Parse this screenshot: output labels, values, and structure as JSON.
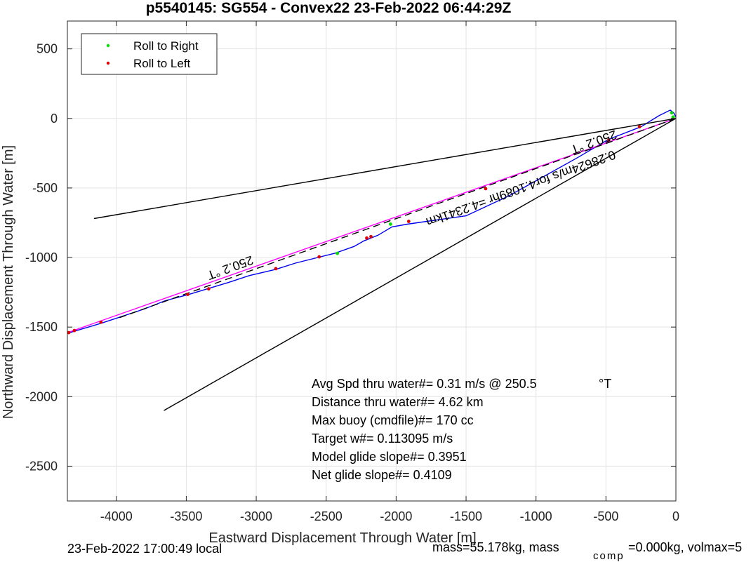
{
  "chart_data": {
    "type": "line",
    "title": "p5540145: SG554 - Convex22 23-Feb-2022 06:44:29Z",
    "xlabel": "Eastward Displacement Through Water [m]",
    "ylabel": "Northward Displacement Through Water [m]",
    "xlim": [
      -4350,
      0
    ],
    "ylim": [
      -2750,
      700
    ],
    "xticks": [
      -4000,
      -3500,
      -3000,
      -2500,
      -2000,
      -1500,
      -1000,
      -500,
      0
    ],
    "xtick_labels": [
      "-4000",
      "-3500",
      "-3000",
      "-2500",
      "-2000",
      "-1500",
      "-1000",
      "-500",
      "0"
    ],
    "yticks": [
      500,
      0,
      -500,
      -1000,
      -1500,
      -2000,
      -2500
    ],
    "ytick_labels": [
      "500",
      "0",
      "-500",
      "-1000",
      "-1500",
      "-2000",
      "-2500"
    ],
    "grid": true,
    "legend_position": "top-left",
    "legend": [
      {
        "label": "Roll to Right",
        "color": "#00e000"
      },
      {
        "label": "Roll to Left",
        "color": "#e00000"
      }
    ],
    "series": [
      {
        "kind": "track",
        "color": "#0000ee",
        "x": [
          0,
          -15,
          -40,
          -120,
          -250,
          -480,
          -700,
          -950,
          -1200,
          -1500,
          -1780,
          -1920,
          -2030,
          -2130,
          -2180,
          -2230,
          -2300,
          -2440,
          -2560,
          -2720,
          -2860,
          -3050,
          -3200,
          -3350,
          -3480,
          -3650,
          -3800,
          -3950,
          -4100,
          -4200,
          -4300,
          -4350
        ],
        "y": [
          10,
          40,
          60,
          20,
          -60,
          -150,
          -280,
          -420,
          -560,
          -700,
          -740,
          -760,
          -780,
          -840,
          -860,
          -880,
          -920,
          -970,
          -1000,
          -1040,
          -1085,
          -1130,
          -1180,
          -1225,
          -1265,
          -1310,
          -1370,
          -1420,
          -1470,
          -1500,
          -1530,
          -1545
        ]
      },
      {
        "kind": "net",
        "color": "#ff00ff",
        "x": [
          0,
          -4350
        ],
        "y": [
          0,
          -1540
        ]
      },
      {
        "kind": "heading-dashed",
        "color": "#000000",
        "x": [
          0,
          -4000
        ],
        "y": [
          0,
          -1440
        ]
      },
      {
        "kind": "bound-upper",
        "color": "#000000",
        "x": [
          0,
          -4160
        ],
        "y": [
          0,
          -720
        ]
      },
      {
        "kind": "bound-lower",
        "color": "#000000",
        "x": [
          0,
          -3660
        ],
        "y": [
          0,
          -2100
        ]
      }
    ],
    "roll_right": {
      "x": [
        -20,
        -30,
        -2420,
        -2040
      ],
      "y": [
        10,
        40,
        -970,
        -760
      ]
    },
    "roll_left": {
      "x": [
        -260,
        -480,
        -1360,
        -1910,
        -2180,
        -2210,
        -2550,
        -2860,
        -3340,
        -3490,
        -4110,
        -4300,
        -4340
      ],
      "y": [
        -60,
        -155,
        -505,
        -740,
        -850,
        -860,
        -995,
        -1080,
        -1225,
        -1265,
        -1465,
        -1525,
        -1540
      ]
    },
    "annotations": {
      "heading_near": "250.2 °T",
      "heading_far": "250.2 °T",
      "speed": "0.28624m/s for4.1089hr =4.2341km"
    },
    "stats": [
      {
        "text": "Avg Spd thru water#=  0.31 m/s @ 250.5",
        "unit": "°T"
      },
      {
        "text": "Distance thru water#=  4.62 km"
      },
      {
        "text": "Max buoy (cmdfile)#= 170 cc"
      },
      {
        "text": "Target w#= 0.113095 m/s"
      },
      {
        "text": "Model glide slope#= 0.3951"
      },
      {
        "text": "Net glide slope#= 0.4109"
      }
    ]
  },
  "footer": {
    "local_time": "23-Feb-2022 17:00:49 local",
    "mass": "mass=55.178kg, mass",
    "comp_sub": "comp",
    "mass_comp": "=0.000kg, volmax=5"
  }
}
